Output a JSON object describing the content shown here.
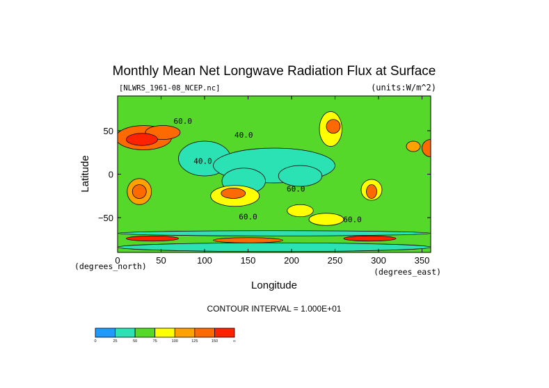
{
  "chart_data": {
    "type": "heatmap",
    "title": "Monthly Mean Net Longwave Radiation Flux at Surface",
    "subtitle_left": "[NLWRS_1961-08_NCEP.nc]",
    "subtitle_right": "(units:W/m^2)",
    "xlabel": "Longitude",
    "ylabel": "Latitude",
    "x_unit_label": "(degrees_east)",
    "y_unit_label": "(degrees_north)",
    "xlim": [
      0,
      360
    ],
    "ylim": [
      -90,
      90
    ],
    "x_ticks": [
      {
        "value": 0,
        "label": "0"
      },
      {
        "value": 50,
        "label": "50"
      },
      {
        "value": 100,
        "label": "100"
      },
      {
        "value": 150,
        "label": "150"
      },
      {
        "value": 200,
        "label": "200"
      },
      {
        "value": 250,
        "label": "250"
      },
      {
        "value": 300,
        "label": "300"
      },
      {
        "value": 350,
        "label": "350"
      }
    ],
    "y_ticks": [
      {
        "value": 50,
        "label": "50"
      },
      {
        "value": 0,
        "label": "0"
      },
      {
        "value": -50,
        "label": "−50"
      }
    ],
    "contour_interval_text": "CONTOUR INTERVAL = 1.000E+01",
    "contour_labels": [
      {
        "lon": 75,
        "lat": 58,
        "text": "60.0"
      },
      {
        "lon": 145,
        "lat": 42,
        "text": "40.0"
      },
      {
        "lon": 98,
        "lat": 12,
        "text": "40.0"
      },
      {
        "lon": 205,
        "lat": -20,
        "text": "60.0"
      },
      {
        "lon": 150,
        "lat": -52,
        "text": "60.0"
      },
      {
        "lon": 270,
        "lat": -55,
        "text": "60.0"
      }
    ],
    "colorbar": {
      "ticks": [
        "0",
        "25",
        "50",
        "75",
        "100",
        "125",
        "150",
        "∞"
      ],
      "colors": [
        "#1e9bff",
        "#2be2b4",
        "#55d82a",
        "#ffff00",
        "#ffa200",
        "#ff6a00",
        "#ff2200"
      ]
    },
    "levels": [
      0,
      25,
      50,
      75,
      100,
      125,
      150
    ],
    "background_value": 50,
    "regions": [
      {
        "lon": 30,
        "lat": 42,
        "rx": 32,
        "ry": 14,
        "value": 135
      },
      {
        "lon": 52,
        "lat": 48,
        "rx": 20,
        "ry": 8,
        "value": 140
      },
      {
        "lon": 28,
        "lat": 40,
        "rx": 18,
        "ry": 7,
        "value": 155
      },
      {
        "lon": 100,
        "lat": 18,
        "rx": 30,
        "ry": 20,
        "value": 40
      },
      {
        "lon": 180,
        "lat": 10,
        "rx": 70,
        "ry": 20,
        "value": 42
      },
      {
        "lon": 145,
        "lat": -8,
        "rx": 25,
        "ry": 15,
        "value": 42
      },
      {
        "lon": 210,
        "lat": -2,
        "rx": 25,
        "ry": 12,
        "value": 40
      },
      {
        "lon": 245,
        "lat": 52,
        "rx": 13,
        "ry": 20,
        "value": 95
      },
      {
        "lon": 248,
        "lat": 55,
        "rx": 8,
        "ry": 8,
        "value": 125
      },
      {
        "lon": 25,
        "lat": -20,
        "rx": 14,
        "ry": 15,
        "value": 105
      },
      {
        "lon": 25,
        "lat": -20,
        "rx": 8,
        "ry": 8,
        "value": 130
      },
      {
        "lon": 135,
        "lat": -25,
        "rx": 28,
        "ry": 12,
        "value": 95
      },
      {
        "lon": 133,
        "lat": -22,
        "rx": 14,
        "ry": 6,
        "value": 125
      },
      {
        "lon": 292,
        "lat": -18,
        "rx": 12,
        "ry": 12,
        "value": 95
      },
      {
        "lon": 292,
        "lat": -20,
        "rx": 6,
        "ry": 8,
        "value": 140
      },
      {
        "lon": 210,
        "lat": -42,
        "rx": 15,
        "ry": 7,
        "value": 80
      },
      {
        "lon": 240,
        "lat": -52,
        "rx": 20,
        "ry": 7,
        "value": 80
      },
      {
        "lon": 340,
        "lat": 32,
        "rx": 8,
        "ry": 6,
        "value": 110
      },
      {
        "lon": 360,
        "lat": 30,
        "rx": 10,
        "ry": 10,
        "value": 140
      },
      {
        "lon": 180,
        "lat": -68,
        "rx": 180,
        "ry": 3,
        "value": 30
      },
      {
        "lon": 40,
        "lat": -74,
        "rx": 30,
        "ry": 3,
        "value": 155
      },
      {
        "lon": 150,
        "lat": -76,
        "rx": 40,
        "ry": 3,
        "value": 140
      },
      {
        "lon": 290,
        "lat": -74,
        "rx": 30,
        "ry": 3,
        "value": 150
      },
      {
        "lon": 180,
        "lat": -84,
        "rx": 180,
        "ry": 5,
        "value": 45
      }
    ]
  }
}
